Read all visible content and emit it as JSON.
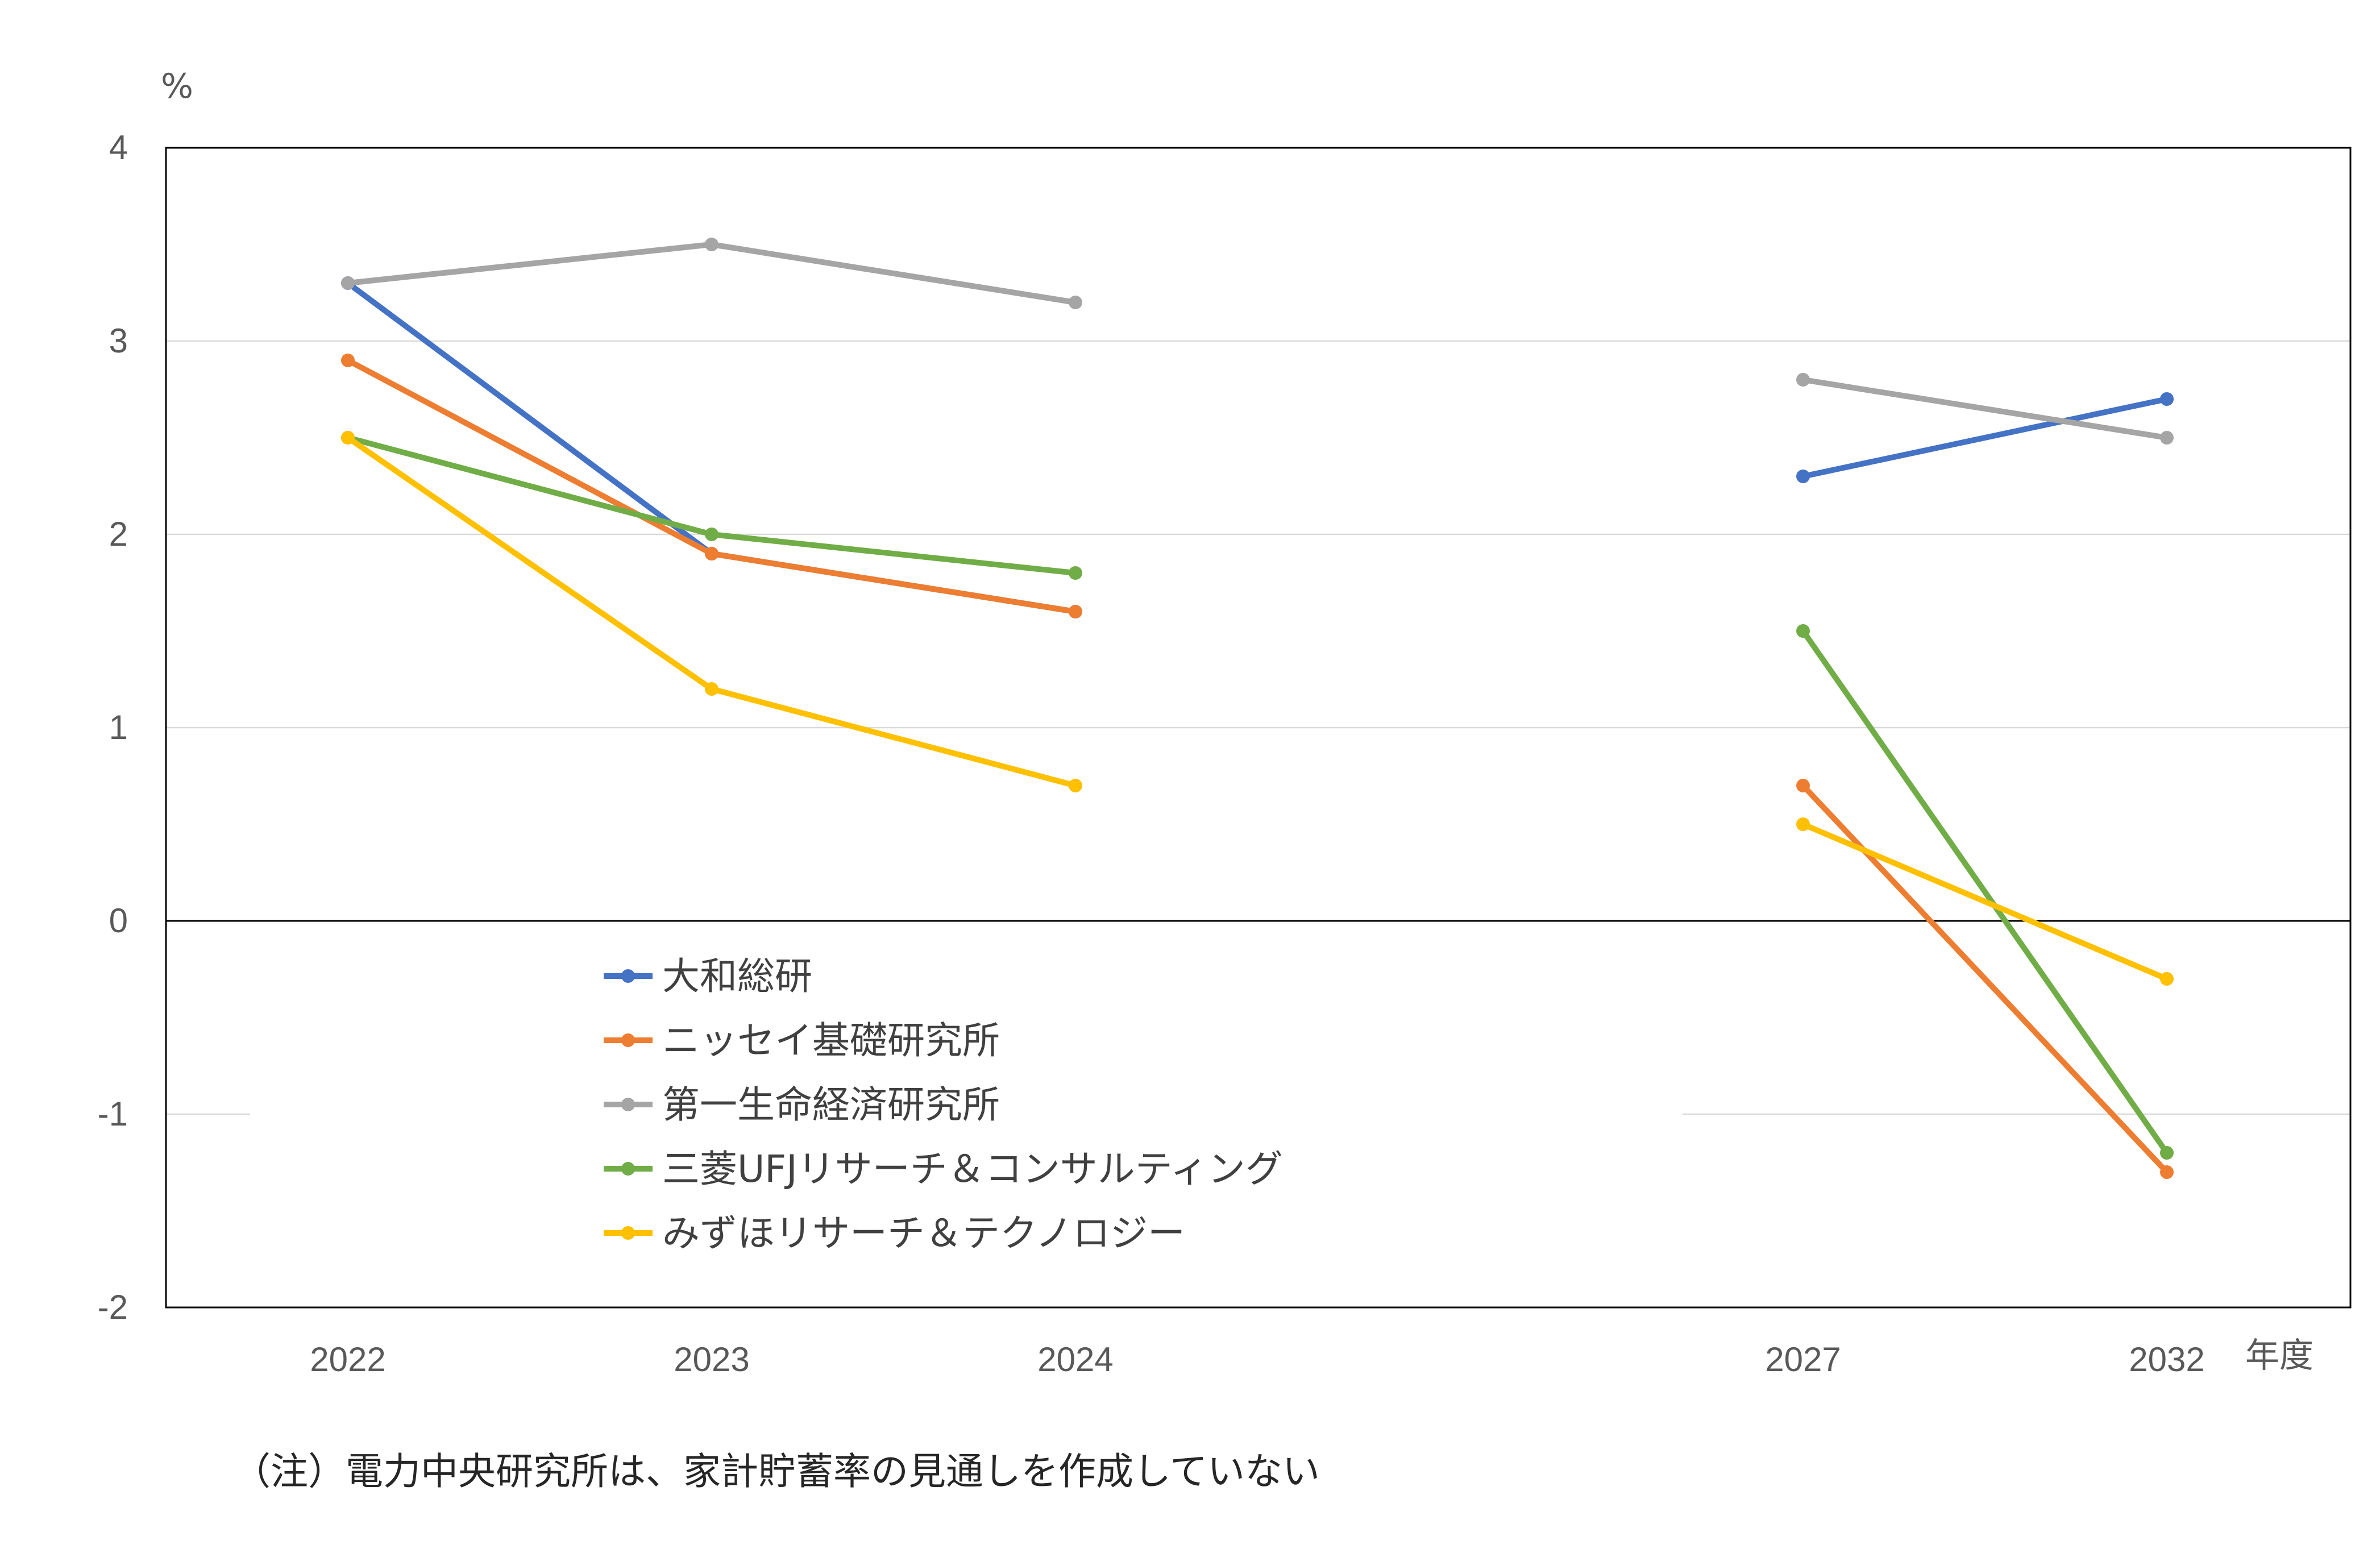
{
  "chart_data": {
    "type": "line",
    "categories": [
      "2022",
      "2023",
      "2024",
      "2027",
      "2032"
    ],
    "xlabel": "年度",
    "ylabel": "%",
    "ylim": [
      -2,
      4
    ],
    "yticks": [
      "4",
      "3",
      "2",
      "1",
      "0",
      "-1",
      "-2"
    ],
    "grid": true,
    "legend_position": "lower-center inside plot",
    "series": [
      {
        "name": "大和総研",
        "color": "#4472C4",
        "values": [
          3.3,
          1.9,
          1.6,
          2.3,
          2.7
        ]
      },
      {
        "name": "ニッセイ基礎研究所",
        "color": "#ED7D31",
        "values": [
          2.9,
          1.9,
          1.6,
          0.7,
          -1.3
        ]
      },
      {
        "name": "第一生命経済研究所",
        "color": "#A5A5A5",
        "values": [
          3.3,
          3.5,
          3.2,
          2.8,
          2.5
        ]
      },
      {
        "name": "三菱UFJリサーチ＆コンサルティング",
        "color": "#70AD47",
        "values": [
          2.5,
          2.0,
          1.8,
          1.5,
          -1.2
        ]
      },
      {
        "name": "みずほリサーチ＆テクノロジー",
        "color": "#FFC000",
        "values": [
          2.5,
          1.2,
          0.7,
          0.5,
          -0.3
        ]
      }
    ]
  },
  "note": "（注）電力中央研究所は、家計貯蓄率の見通しを作成していない"
}
